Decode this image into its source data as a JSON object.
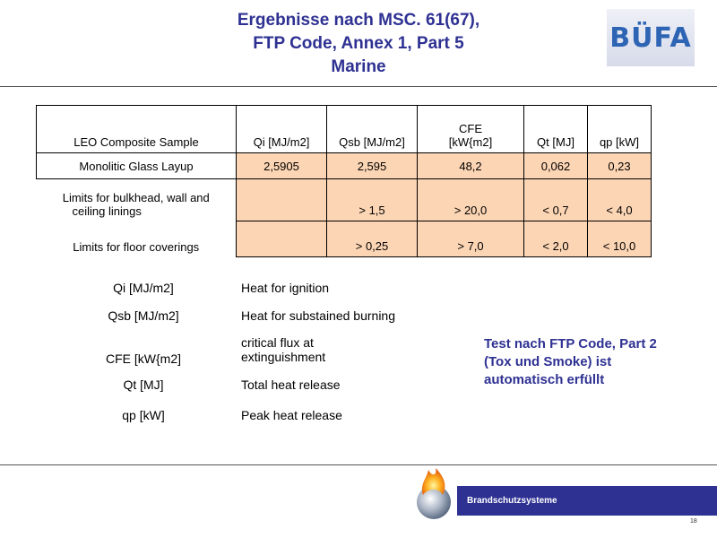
{
  "title": {
    "line1": "Ergebnisse  nach MSC. 61(67),",
    "line2": "FTP Code, Annex 1, Part 5",
    "line3": "Marine"
  },
  "logo": {
    "text": "BÜFA",
    "color": "#2e64b4"
  },
  "results_table": {
    "headers": [
      "LEO Composite Sample",
      "Qi [MJ/m2]",
      "Qsb [MJ/m2]",
      "CFE\n[kW{m2]",
      "Qt [MJ]",
      "qp [kW]"
    ],
    "header_cfe_line1": "CFE",
    "header_cfe_line2": "[kW{m2]",
    "sample": {
      "label": "Monolitic Glass Layup",
      "qi": "2,5905",
      "qsb": "2,595",
      "cfe": "48,2",
      "qt": "0,062",
      "qp": "0,23"
    },
    "limit_bulkhead": {
      "label_line1": "Limits for bulkhead, wall and",
      "label_line2": "ceiling linings",
      "qi": "",
      "qsb": "> 1,5",
      "cfe": "> 20,0",
      "qt": "< 0,7",
      "qp": "< 4,0"
    },
    "limit_floor": {
      "label": "Limits for floor coverings",
      "qi": "",
      "qsb": "> 0,25",
      "cfe": "> 7,0",
      "qt": "< 2,0",
      "qp": "< 10,0"
    },
    "highlight_color": "#fcd5b4"
  },
  "legend": [
    {
      "key": "Qi [MJ/m2]",
      "desc": "Heat for ignition"
    },
    {
      "key": "Qsb [MJ/m2]",
      "desc": "Heat for substained burning"
    },
    {
      "key": "CFE [kW{m2]",
      "desc_line1": "critical flux  at",
      "desc_line2": "extinguishment"
    },
    {
      "key": "Qt [MJ]",
      "desc": "Total heat release"
    },
    {
      "key": "qp [kW]",
      "desc": "Peak heat release"
    }
  ],
  "note": {
    "line1": "Test nach FTP Code, Part 2",
    "line2": "(Tox und Smoke) ist",
    "line3": "automatisch erfüllt",
    "color": "#2e3192"
  },
  "footer": {
    "label": "Brandschutzsysteme",
    "bar_color": "#2e3192",
    "page_number": "18"
  }
}
